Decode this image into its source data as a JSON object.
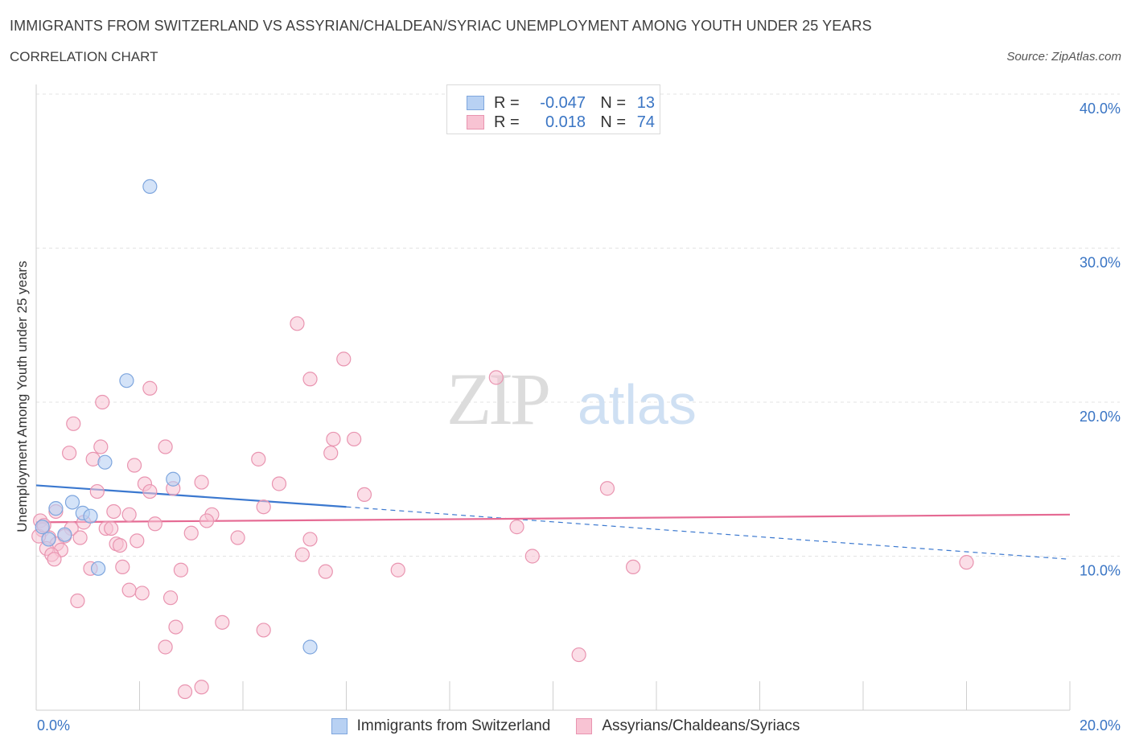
{
  "header": {
    "title": "IMMIGRANTS FROM SWITZERLAND VS ASSYRIAN/CHALDEAN/SYRIAC UNEMPLOYMENT AMONG YOUTH UNDER 25 YEARS",
    "subtitle": "CORRELATION CHART",
    "source": "Source: ZipAtlas.com"
  },
  "watermark": {
    "zip": "ZIP",
    "atlas": "atlas"
  },
  "legend_top": {
    "rows": [
      {
        "r_label": "R =",
        "r_value": "-0.047",
        "n_label": "N =",
        "n_value": "13"
      },
      {
        "r_label": "R =",
        "r_value": "0.018",
        "n_label": "N =",
        "n_value": "74"
      }
    ]
  },
  "legend_bottom": {
    "items": [
      {
        "label": "Immigrants from Switzerland"
      },
      {
        "label": "Assyrians/Chaldeans/Syriacs"
      }
    ]
  },
  "colors": {
    "blue_fill": "#b8d1f3",
    "blue_stroke": "#7ea6de",
    "blue_line": "#3b78cf",
    "pink_fill": "#f8c3d3",
    "pink_stroke": "#e994b0",
    "pink_line": "#e56a93",
    "axis_text": "#3a75c4",
    "grid": "#e3e3e3"
  },
  "chart_data": {
    "type": "scatter",
    "title": "IMMIGRANTS FROM SWITZERLAND VS ASSYRIAN/CHALDEAN/SYRIAC UNEMPLOYMENT AMONG YOUTH UNDER 25 YEARS",
    "xlabel": "",
    "ylabel": "Unemployment Among Youth under 25 years",
    "xlim": [
      0,
      20
    ],
    "ylim": [
      0,
      40
    ],
    "x_tick_labels": [
      "0.0%",
      "20.0%"
    ],
    "y_ticks": [
      10,
      20,
      30,
      40
    ],
    "y_tick_labels": [
      "10.0%",
      "20.0%",
      "30.0%",
      "40.0%"
    ],
    "grid": true,
    "legend_position": "top-center",
    "series": [
      {
        "name": "Immigrants from Switzerland",
        "color": "#b8d1f3",
        "points": [
          [
            2.2,
            34.0
          ],
          [
            1.75,
            21.4
          ],
          [
            1.33,
            16.1
          ],
          [
            2.65,
            15.0
          ],
          [
            0.7,
            13.5
          ],
          [
            0.38,
            13.1
          ],
          [
            0.9,
            12.8
          ],
          [
            1.05,
            12.6
          ],
          [
            0.55,
            11.4
          ],
          [
            0.12,
            11.9
          ],
          [
            0.24,
            11.1
          ],
          [
            1.2,
            9.2
          ],
          [
            5.3,
            4.1
          ]
        ],
        "trend": {
          "x": [
            0,
            6.0,
            20.0
          ],
          "y": [
            14.6,
            13.2,
            9.8
          ],
          "solid_until": 6.0
        }
      },
      {
        "name": "Assyrians/Chaldeans/Syriacs",
        "color": "#f8c3d3",
        "points": [
          [
            5.05,
            25.1
          ],
          [
            5.95,
            22.8
          ],
          [
            8.9,
            21.6
          ],
          [
            5.3,
            21.5
          ],
          [
            2.2,
            20.9
          ],
          [
            1.28,
            20.0
          ],
          [
            0.72,
            18.6
          ],
          [
            5.75,
            17.6
          ],
          [
            6.15,
            17.6
          ],
          [
            1.25,
            17.1
          ],
          [
            2.5,
            17.1
          ],
          [
            0.64,
            16.7
          ],
          [
            5.7,
            16.7
          ],
          [
            1.1,
            16.3
          ],
          [
            4.3,
            16.3
          ],
          [
            1.9,
            15.9
          ],
          [
            3.2,
            14.8
          ],
          [
            4.7,
            14.7
          ],
          [
            2.1,
            14.7
          ],
          [
            2.65,
            14.4
          ],
          [
            11.05,
            14.4
          ],
          [
            1.18,
            14.2
          ],
          [
            2.2,
            14.2
          ],
          [
            6.35,
            14.0
          ],
          [
            4.4,
            13.2
          ],
          [
            1.5,
            12.9
          ],
          [
            0.38,
            12.9
          ],
          [
            3.4,
            12.7
          ],
          [
            1.8,
            12.7
          ],
          [
            0.08,
            12.3
          ],
          [
            3.3,
            12.3
          ],
          [
            0.92,
            12.2
          ],
          [
            2.3,
            12.1
          ],
          [
            0.68,
            11.8
          ],
          [
            1.35,
            11.8
          ],
          [
            1.45,
            11.8
          ],
          [
            9.3,
            11.9
          ],
          [
            0.12,
            11.7
          ],
          [
            0.85,
            11.2
          ],
          [
            1.95,
            11.0
          ],
          [
            5.3,
            11.1
          ],
          [
            3.9,
            11.2
          ],
          [
            0.55,
            11.3
          ],
          [
            0.25,
            11.2
          ],
          [
            1.55,
            10.8
          ],
          [
            0.4,
            10.8
          ],
          [
            1.62,
            10.7
          ],
          [
            0.2,
            10.5
          ],
          [
            0.48,
            10.4
          ],
          [
            0.3,
            10.1
          ],
          [
            5.15,
            10.1
          ],
          [
            9.6,
            10.0
          ],
          [
            0.35,
            9.8
          ],
          [
            1.67,
            9.3
          ],
          [
            1.05,
            9.2
          ],
          [
            2.8,
            9.1
          ],
          [
            7.0,
            9.1
          ],
          [
            5.6,
            9.0
          ],
          [
            11.55,
            9.3
          ],
          [
            18.0,
            9.6
          ],
          [
            1.8,
            7.8
          ],
          [
            2.05,
            7.6
          ],
          [
            2.6,
            7.3
          ],
          [
            0.8,
            7.1
          ],
          [
            3.6,
            5.7
          ],
          [
            2.7,
            5.4
          ],
          [
            4.4,
            5.2
          ],
          [
            2.5,
            4.1
          ],
          [
            10.5,
            3.6
          ],
          [
            3.2,
            1.5
          ],
          [
            2.88,
            1.2
          ],
          [
            0.05,
            11.3
          ],
          [
            0.15,
            12.0
          ],
          [
            3.0,
            11.5
          ]
        ],
        "trend": {
          "x": [
            0,
            20.0
          ],
          "y": [
            12.2,
            12.7
          ]
        }
      }
    ]
  }
}
